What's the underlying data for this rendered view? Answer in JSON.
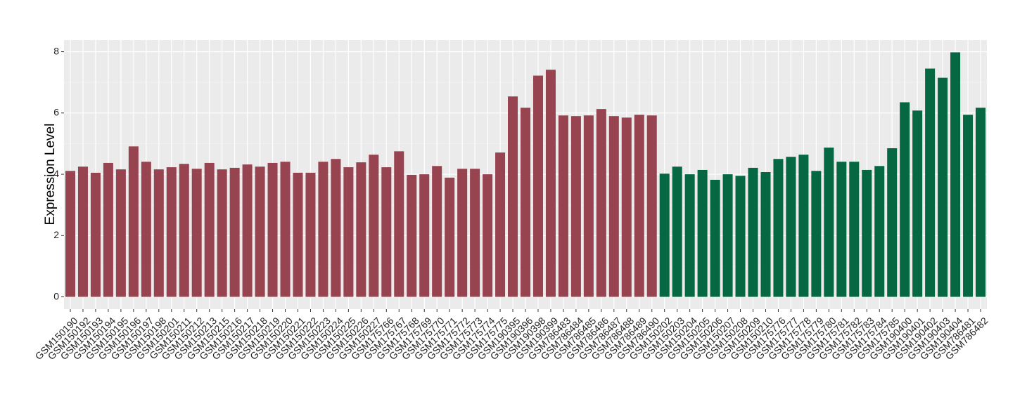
{
  "chart_data": {
    "type": "bar",
    "y_label": "Expression Level",
    "categories": [
      "GSM150190",
      "GSM150192",
      "GSM150193",
      "GSM150194",
      "GSM150195",
      "GSM150196",
      "GSM150197",
      "GSM150198",
      "GSM150201",
      "GSM150211",
      "GSM150212",
      "GSM150213",
      "GSM150215",
      "GSM150216",
      "GSM150217",
      "GSM150218",
      "GSM150219",
      "GSM150220",
      "GSM150221",
      "GSM150222",
      "GSM150223",
      "GSM150224",
      "GSM150225",
      "GSM150226",
      "GSM150227",
      "GSM175766",
      "GSM175767",
      "GSM175768",
      "GSM175769",
      "GSM175770",
      "GSM175771",
      "GSM175772",
      "GSM175773",
      "GSM175774",
      "GSM175775",
      "GSM190395",
      "GSM190396",
      "GSM190398",
      "GSM190399",
      "GSM786483",
      "GSM786484",
      "GSM786485",
      "GSM786486",
      "GSM786487",
      "GSM786488",
      "GSM786489",
      "GSM786490",
      "GSM150202",
      "GSM150203",
      "GSM150204",
      "GSM150205",
      "GSM150206",
      "GSM150207",
      "GSM150208",
      "GSM150209",
      "GSM150210",
      "GSM175776",
      "GSM175777",
      "GSM175778",
      "GSM175779",
      "GSM175780",
      "GSM175781",
      "GSM175782",
      "GSM175783",
      "GSM175784",
      "GSM175785",
      "GSM190400",
      "GSM190401",
      "GSM190402",
      "GSM190403",
      "GSM190404",
      "GSM786481",
      "GSM786482"
    ],
    "series": [
      {
        "color": "#974350",
        "values": [
          4.11,
          4.25,
          4.05,
          4.37,
          4.16,
          4.91,
          4.41,
          4.16,
          4.23,
          4.34,
          4.18,
          4.37,
          4.16,
          4.21,
          4.32,
          4.25,
          4.37,
          4.41,
          4.05,
          4.05,
          4.41,
          4.5,
          4.23,
          4.39,
          4.64,
          4.23,
          4.75,
          3.98,
          4.0,
          4.27,
          3.89,
          4.18,
          4.18,
          4.0,
          4.71,
          6.54,
          6.17,
          7.22,
          7.41,
          5.92,
          5.9,
          5.92,
          6.13,
          5.9,
          5.85,
          5.94,
          5.92,
          null,
          null,
          null,
          null,
          null,
          null,
          null,
          null,
          null,
          null,
          null,
          null,
          null,
          null,
          null,
          null,
          null,
          null,
          null,
          null,
          null,
          null,
          null,
          null,
          null,
          null
        ]
      },
      {
        "color": "#056843",
        "values": [
          null,
          null,
          null,
          null,
          null,
          null,
          null,
          null,
          null,
          null,
          null,
          null,
          null,
          null,
          null,
          null,
          null,
          null,
          null,
          null,
          null,
          null,
          null,
          null,
          null,
          null,
          null,
          null,
          null,
          null,
          null,
          null,
          null,
          null,
          null,
          null,
          null,
          null,
          null,
          null,
          null,
          null,
          null,
          null,
          null,
          null,
          null,
          4.02,
          4.25,
          4.0,
          4.14,
          3.82,
          4.0,
          3.95,
          4.21,
          4.07,
          4.5,
          4.57,
          4.64,
          4.11,
          4.87,
          4.41,
          4.41,
          4.14,
          4.27,
          4.85,
          6.35,
          6.08,
          7.45,
          7.15,
          7.98,
          5.94,
          6.17
        ]
      }
    ],
    "ylim": [
      -0.4,
      8.38
    ],
    "yticks": [
      0,
      2,
      4,
      6,
      8
    ],
    "grid": true
  }
}
